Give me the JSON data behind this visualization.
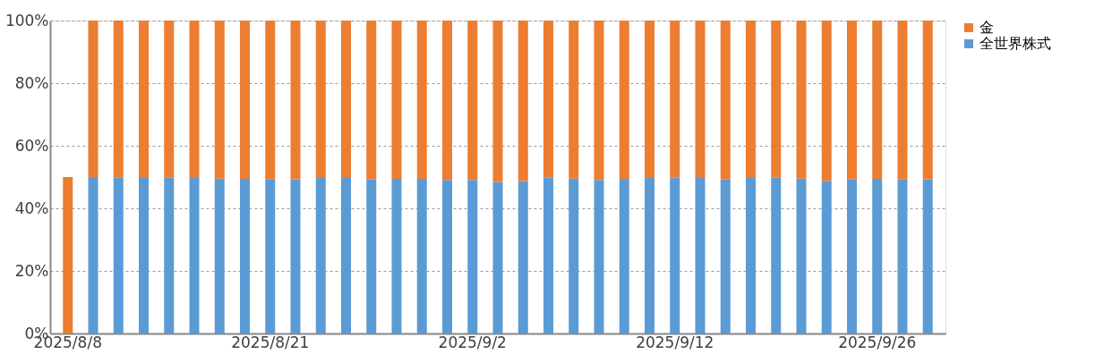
{
  "chart_data": {
    "type": "bar",
    "stacked": true,
    "categories": [
      "2025/8/8",
      null,
      null,
      null,
      null,
      null,
      null,
      null,
      "2025/8/21",
      null,
      null,
      null,
      null,
      null,
      null,
      null,
      "2025/9/2",
      null,
      null,
      null,
      null,
      null,
      null,
      null,
      "2025/9/12",
      null,
      null,
      null,
      null,
      null,
      null,
      null,
      "2025/9/26",
      null,
      null
    ],
    "series": [
      {
        "name": "全世界株式",
        "color": "#5b9bd5",
        "values": [
          null,
          50,
          49.8,
          49.7,
          49.8,
          49.7,
          49.5,
          49.4,
          49.2,
          49.3,
          49.7,
          49.7,
          49.3,
          49.4,
          49.4,
          49.1,
          49.1,
          48.4,
          48.7,
          49.8,
          49.5,
          49.1,
          49.4,
          49.7,
          49.8,
          49.7,
          49.3,
          49.7,
          49.8,
          49.5,
          48.8,
          49.2,
          49.4,
          49.2,
          49.2
        ]
      },
      {
        "name": "金",
        "color": "#ed7d31",
        "values": [
          50,
          50,
          50.2,
          50.3,
          50.2,
          50.3,
          50.5,
          50.6,
          50.8,
          50.7,
          50.3,
          50.3,
          50.7,
          50.6,
          50.6,
          50.9,
          50.9,
          51.6,
          51.3,
          50.2,
          50.5,
          50.9,
          50.6,
          50.3,
          50.2,
          50.3,
          50.7,
          50.3,
          50.2,
          50.5,
          51.2,
          50.8,
          50.6,
          50.8,
          50.8
        ]
      }
    ],
    "ylim": [
      0,
      100
    ],
    "yticks": [
      {
        "value": 0,
        "label": "0%"
      },
      {
        "value": 20,
        "label": "20%"
      },
      {
        "value": 40,
        "label": "40%"
      },
      {
        "value": 60,
        "label": "60%"
      },
      {
        "value": 80,
        "label": "80%"
      },
      {
        "value": 100,
        "label": "100%"
      }
    ],
    "grid": "y",
    "legend": "top right"
  }
}
